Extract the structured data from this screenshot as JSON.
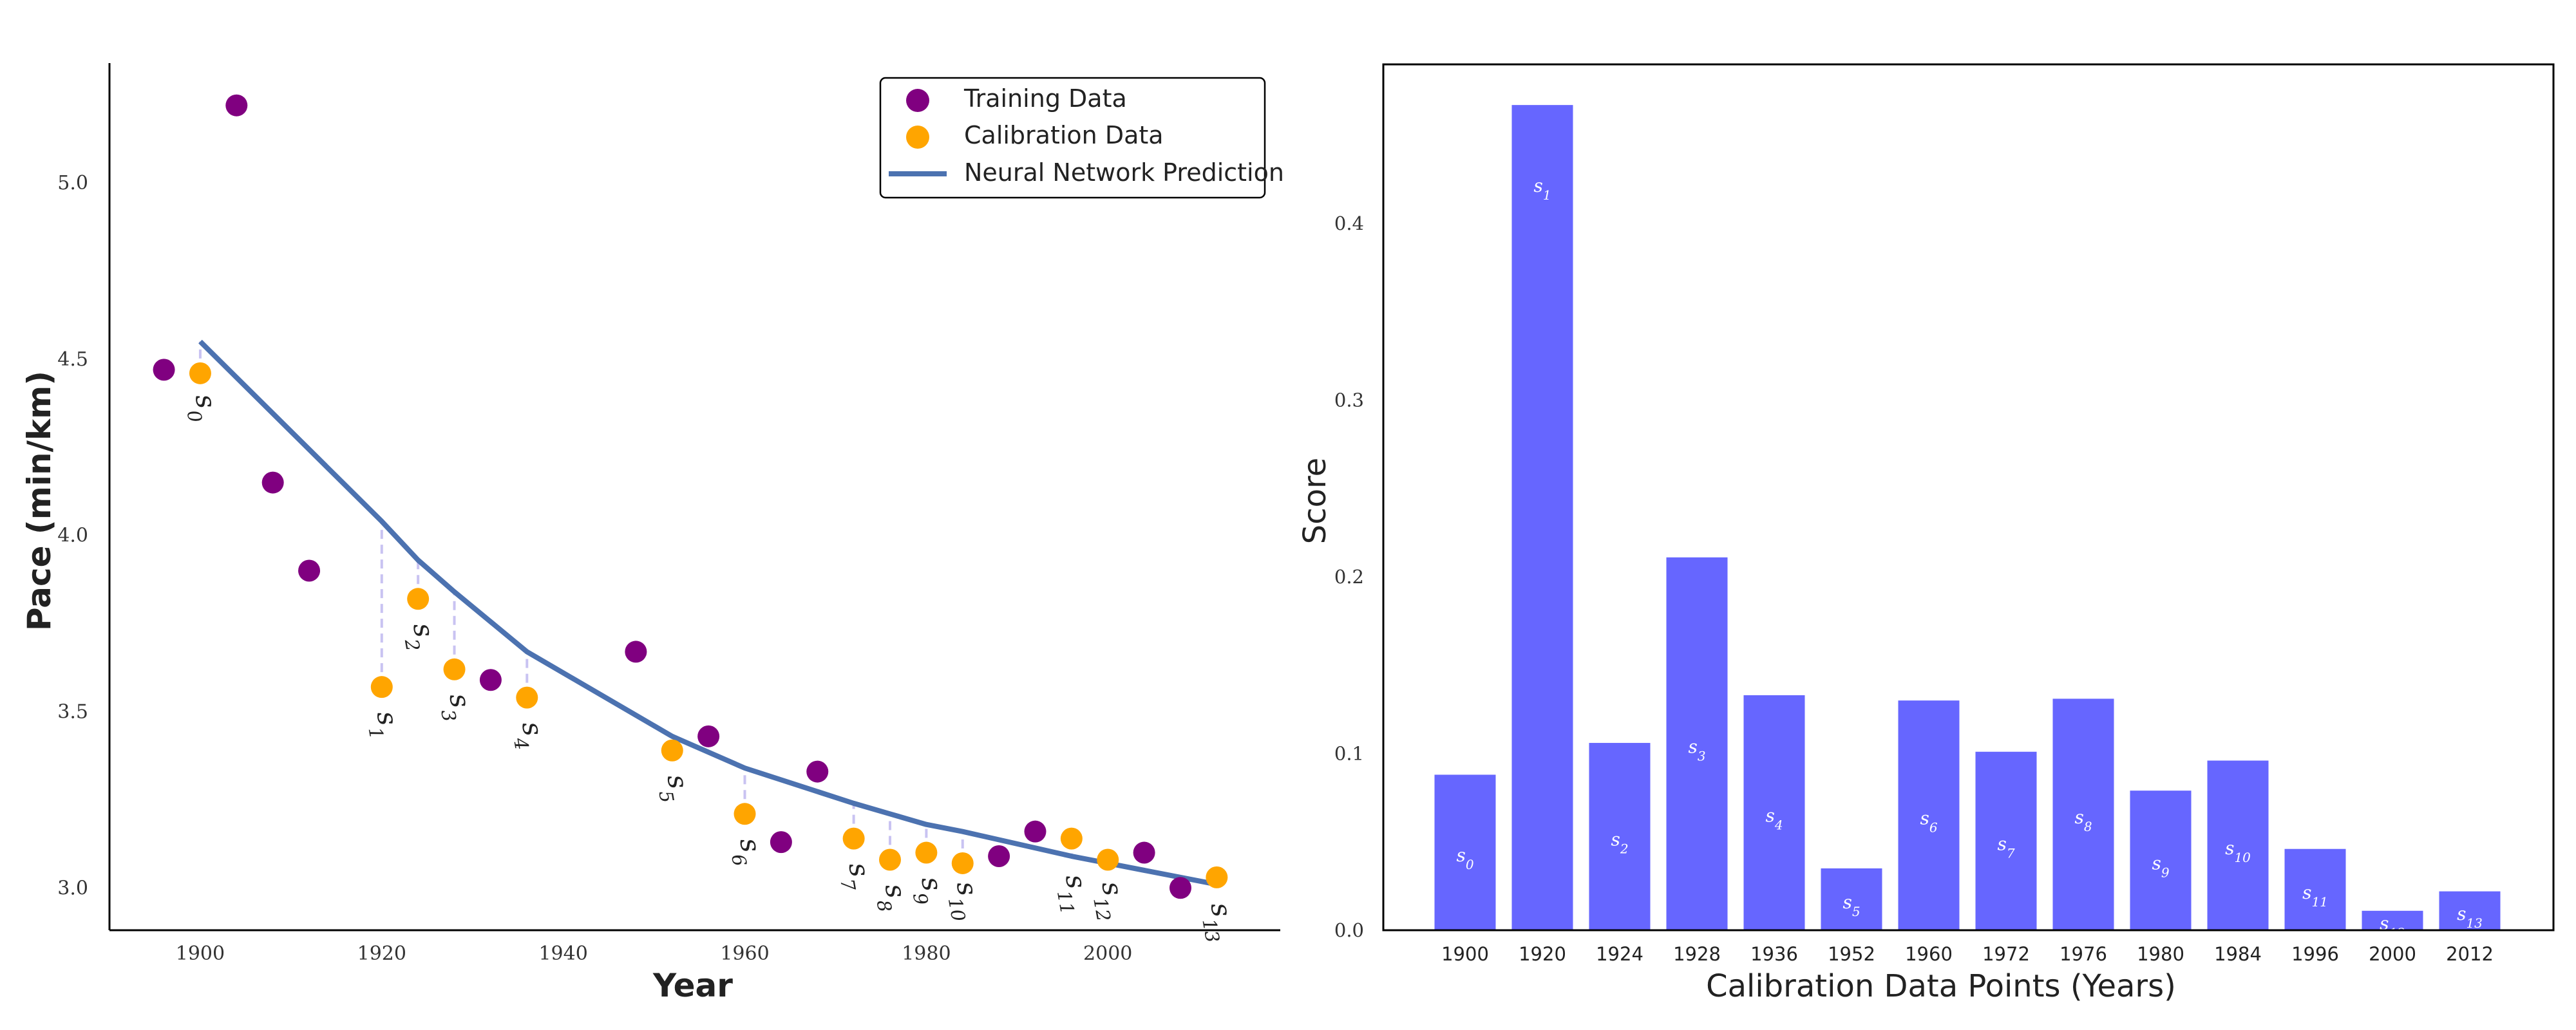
{
  "chart_data": [
    {
      "type": "scatter",
      "xlabel": "Year",
      "ylabel": "Pace (min/km)",
      "xlim": [
        1890,
        2019
      ],
      "ylim": [
        2.88,
        5.34
      ],
      "x_ticks": [
        1900,
        1920,
        1940,
        1960,
        1980,
        2000
      ],
      "y_ticks": [
        3.0,
        3.5,
        4.0,
        4.5,
        5.0
      ],
      "grid": false,
      "legend_position": "top-right",
      "legend": [
        {
          "key": "training",
          "label": "Training Data"
        },
        {
          "key": "calibration",
          "label": "Calibration Data"
        },
        {
          "key": "prediction",
          "label": "Neural Network Prediction"
        }
      ],
      "colors": {
        "training": "#800080",
        "calibration": "#FFA500",
        "prediction": "#4C72B0",
        "residual": "#C9C3F2"
      },
      "training": [
        {
          "x": 1896,
          "y": 4.47
        },
        {
          "x": 1904,
          "y": 5.22
        },
        {
          "x": 1908,
          "y": 4.15
        },
        {
          "x": 1912,
          "y": 3.9
        },
        {
          "x": 1932,
          "y": 3.59
        },
        {
          "x": 1948,
          "y": 3.67
        },
        {
          "x": 1956,
          "y": 3.43
        },
        {
          "x": 1964,
          "y": 3.13
        },
        {
          "x": 1968,
          "y": 3.33
        },
        {
          "x": 1988,
          "y": 3.09
        },
        {
          "x": 1992,
          "y": 3.16
        },
        {
          "x": 2004,
          "y": 3.1
        },
        {
          "x": 2008,
          "y": 3.0
        }
      ],
      "calibration": [
        {
          "x": 1900,
          "y": 4.46,
          "label": "s",
          "sub": "0"
        },
        {
          "x": 1920,
          "y": 3.57,
          "label": "s",
          "sub": "1"
        },
        {
          "x": 1924,
          "y": 3.82,
          "label": "s",
          "sub": "2"
        },
        {
          "x": 1928,
          "y": 3.62,
          "label": "s",
          "sub": "3"
        },
        {
          "x": 1936,
          "y": 3.54,
          "label": "s",
          "sub": "4"
        },
        {
          "x": 1952,
          "y": 3.39,
          "label": "s",
          "sub": "5"
        },
        {
          "x": 1960,
          "y": 3.21,
          "label": "s",
          "sub": "6"
        },
        {
          "x": 1972,
          "y": 3.14,
          "label": "s",
          "sub": "7"
        },
        {
          "x": 1976,
          "y": 3.08,
          "label": "s",
          "sub": "8"
        },
        {
          "x": 1980,
          "y": 3.1,
          "label": "s",
          "sub": "9"
        },
        {
          "x": 1984,
          "y": 3.07,
          "label": "s",
          "sub": "10"
        },
        {
          "x": 1996,
          "y": 3.14,
          "label": "s",
          "sub": "11"
        },
        {
          "x": 2000,
          "y": 3.08,
          "label": "s",
          "sub": "12"
        },
        {
          "x": 2012,
          "y": 3.03,
          "label": "s",
          "sub": "13"
        }
      ],
      "prediction": [
        {
          "x": 1900,
          "y": 4.55
        },
        {
          "x": 1920,
          "y": 4.04
        },
        {
          "x": 1924,
          "y": 3.93
        },
        {
          "x": 1928,
          "y": 3.84
        },
        {
          "x": 1936,
          "y": 3.67
        },
        {
          "x": 1952,
          "y": 3.43
        },
        {
          "x": 1960,
          "y": 3.34
        },
        {
          "x": 1972,
          "y": 3.24
        },
        {
          "x": 1976,
          "y": 3.21
        },
        {
          "x": 1980,
          "y": 3.18
        },
        {
          "x": 1984,
          "y": 3.16
        },
        {
          "x": 1996,
          "y": 3.09
        },
        {
          "x": 2000,
          "y": 3.07
        },
        {
          "x": 2012,
          "y": 3.01
        }
      ]
    },
    {
      "type": "bar",
      "xlabel": "Calibration Data Points (Years)",
      "ylabel": "Score",
      "ylim": [
        0,
        0.49
      ],
      "y_ticks": [
        "0.0",
        "0.1",
        "0.2",
        "0.3",
        "0.4"
      ],
      "grid": false,
      "bar_color": "#6666FF",
      "categories": [
        "1900",
        "1920",
        "1924",
        "1928",
        "1936",
        "1952",
        "1960",
        "1972",
        "1976",
        "1980",
        "1984",
        "1996",
        "2000",
        "2012"
      ],
      "values": [
        0.088,
        0.467,
        0.106,
        0.211,
        0.133,
        0.035,
        0.13,
        0.101,
        0.131,
        0.079,
        0.096,
        0.046,
        0.011,
        0.022
      ],
      "bar_labels": [
        {
          "label": "s",
          "sub": "0"
        },
        {
          "label": "s",
          "sub": "1"
        },
        {
          "label": "s",
          "sub": "2"
        },
        {
          "label": "s",
          "sub": "3"
        },
        {
          "label": "s",
          "sub": "4"
        },
        {
          "label": "s",
          "sub": "5"
        },
        {
          "label": "s",
          "sub": "6"
        },
        {
          "label": "s",
          "sub": "7"
        },
        {
          "label": "s",
          "sub": "8"
        },
        {
          "label": "s",
          "sub": "9"
        },
        {
          "label": "s",
          "sub": "10"
        },
        {
          "label": "s",
          "sub": "11"
        },
        {
          "label": "s",
          "sub": "12"
        },
        {
          "label": "s",
          "sub": "13"
        }
      ]
    }
  ]
}
